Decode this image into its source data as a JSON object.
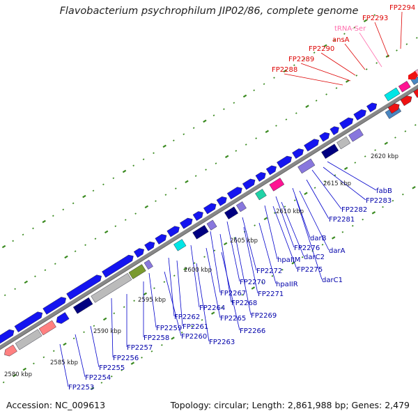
{
  "title": "Flavobacterium psychrophilum JIP02/86, complete genome",
  "footer": {
    "accession": "Accession: NC_009613",
    "summary": "Topology: circular; Length: 2,861,988 bp; Genes: 2,479"
  },
  "colors": {
    "cds_blue": "#1414f0",
    "trna_red": "#ee1111",
    "cyan": "#00e5e5",
    "magenta": "#ff1493",
    "pink": "#ff8080",
    "teal_box": "#20d2a6",
    "gray": "#bbbbbb",
    "olive": "#7a9a30",
    "navy": "#000080",
    "lavender": "#8877dd",
    "steelblue": "#4a86c0",
    "dots": "#3a8a20",
    "label_blue": "#0000aa",
    "label_red": "#dd0000",
    "label_trna": "#ff6fae"
  },
  "scale_labels": [
    "2580 kbp",
    "2585 kbp",
    "2590 kbp",
    "2595 kbp",
    "2600 kbp",
    "2605 kbp",
    "2610 kbp",
    "2615 kbp",
    "2620 kbp"
  ],
  "gene_labels_blue": [
    "fabB",
    "FP2283",
    "FP2282",
    "FP2281",
    "darB",
    "darA",
    "FP2276",
    "darC2",
    "hpaIIM",
    "FP2275",
    "darC1",
    "FP2272",
    "hpaIIR",
    "FP2270",
    "FP2271",
    "FP2267",
    "FP2268",
    "FP2269",
    "FP2264",
    "FP2265",
    "FP2266",
    "FP2262",
    "FP2261",
    "FP2263",
    "FP2259",
    "FP2260",
    "FP2258",
    "FP2257",
    "FP2256",
    "FP2255",
    "FP2254",
    "FP2253"
  ],
  "gene_labels_red": [
    "FP2294",
    "FP2293",
    "ansA",
    "FP2290",
    "FP2289",
    "FP2288"
  ],
  "gene_labels_trna": [
    "tRNA-Ser"
  ]
}
